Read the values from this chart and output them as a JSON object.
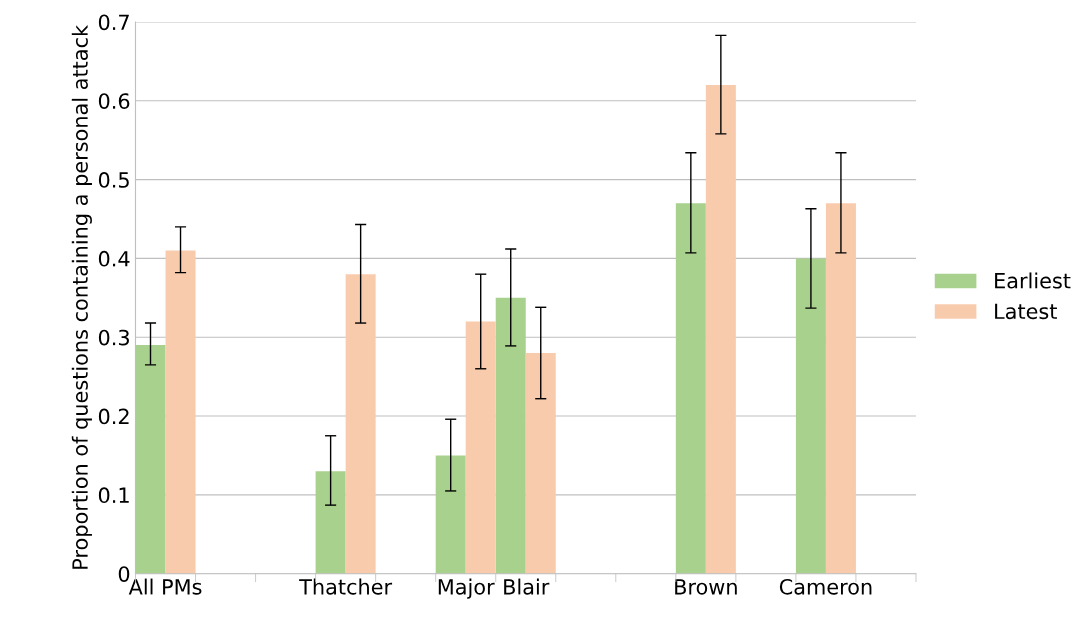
{
  "chart_data": {
    "type": "bar",
    "ylabel": "Proportion of questions containing a personal attack",
    "categories": [
      "All PMs",
      null,
      null,
      "Thatcher",
      null,
      "Major",
      "Blair",
      null,
      null,
      "Brown",
      null,
      "Cameron",
      null
    ],
    "series": [
      {
        "name": "Earliest",
        "color": "#a9d18e",
        "values": [
          0.29,
          null,
          null,
          0.13,
          null,
          0.15,
          0.35,
          null,
          null,
          0.47,
          null,
          0.4,
          null
        ],
        "errors": [
          [
            0.265,
            0.318
          ],
          null,
          null,
          [
            0.087,
            0.175
          ],
          null,
          [
            0.105,
            0.196
          ],
          [
            0.289,
            0.412
          ],
          null,
          null,
          [
            0.407,
            0.534
          ],
          null,
          [
            0.337,
            0.463
          ],
          null
        ]
      },
      {
        "name": "Latest",
        "color": "#f8cbad",
        "values": [
          0.41,
          null,
          null,
          0.38,
          null,
          0.32,
          0.28,
          null,
          null,
          0.62,
          null,
          0.47,
          null
        ],
        "errors": [
          [
            0.382,
            0.44
          ],
          null,
          null,
          [
            0.318,
            0.443
          ],
          null,
          [
            0.26,
            0.38
          ],
          [
            0.222,
            0.338
          ],
          null,
          null,
          [
            0.558,
            0.683
          ],
          null,
          [
            0.407,
            0.534
          ],
          null
        ]
      }
    ],
    "ylim": [
      0,
      0.7
    ],
    "yticks": [
      0,
      0.1,
      0.2,
      0.3,
      0.4,
      0.5,
      0.6,
      0.7
    ],
    "grid": "y",
    "legend": "right"
  }
}
